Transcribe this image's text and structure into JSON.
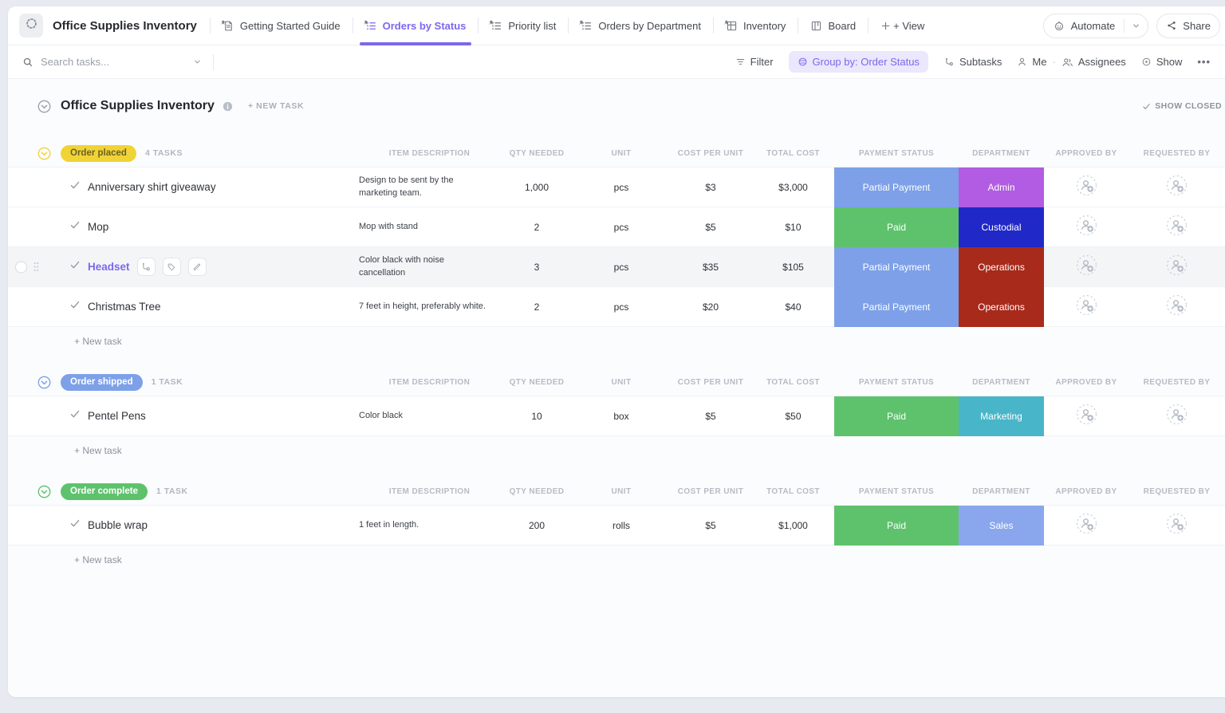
{
  "topbar": {
    "workspace_title": "Office Supplies Inventory",
    "tabs": [
      {
        "label": "Getting Started Guide",
        "icon": "doc-icon",
        "pinned": true,
        "active": false
      },
      {
        "label": "Orders by Status",
        "icon": "list-icon",
        "pinned": true,
        "active": true
      },
      {
        "label": "Priority list",
        "icon": "list-icon",
        "pinned": true,
        "active": false
      },
      {
        "label": "Orders by Department",
        "icon": "list-icon",
        "pinned": true,
        "active": false
      },
      {
        "label": "Inventory",
        "icon": "grid-icon",
        "pinned": true,
        "active": false
      },
      {
        "label": "Board",
        "icon": "board-icon",
        "pinned": false,
        "active": false
      }
    ],
    "add_view": "+ View",
    "automate": "Automate",
    "share": "Share"
  },
  "toolbar": {
    "search_placeholder": "Search tasks...",
    "filter": "Filter",
    "group_by": "Group by: Order Status",
    "subtasks": "Subtasks",
    "me": "Me",
    "assignees": "Assignees",
    "show": "Show",
    "more": "•••"
  },
  "page": {
    "title": "Office Supplies Inventory",
    "new_task": "+ NEW TASK",
    "show_closed": "SHOW CLOSED"
  },
  "columns": [
    "ITEM DESCRIPTION",
    "QTY NEEDED",
    "UNIT",
    "COST PER UNIT",
    "TOTAL COST",
    "PAYMENT STATUS",
    "DEPARTMENT",
    "APPROVED BY",
    "REQUESTED BY"
  ],
  "accent_color": "#7b68ee",
  "groups": [
    {
      "name": "Order placed",
      "count": "4 TASKS",
      "color": "#f0d335",
      "pill_text_color": "#6a6125",
      "new_task": "+ New task",
      "tasks": [
        {
          "name": "Anniversary shirt giveaway",
          "description": "Design to be sent by the marketing team.",
          "qty": "1,000",
          "unit": "pcs",
          "cost_per_unit": "$3",
          "total_cost": "$3,000",
          "payment_status": "Partial Payment",
          "payment_color": "#7da0e8",
          "department": "Admin",
          "department_color": "#b15ce2"
        },
        {
          "name": "Mop",
          "description": "Mop with stand",
          "qty": "2",
          "unit": "pcs",
          "cost_per_unit": "$5",
          "total_cost": "$10",
          "payment_status": "Paid",
          "payment_color": "#5ec26d",
          "department": "Custodial",
          "department_color": "#2029c7"
        },
        {
          "name": "Headset",
          "description": "Color black with noise cancellation",
          "qty": "3",
          "unit": "pcs",
          "cost_per_unit": "$35",
          "total_cost": "$105",
          "payment_status": "Partial Payment",
          "payment_color": "#7da0e8",
          "department": "Operations",
          "department_color": "#a82a1b",
          "highlighted": true,
          "name_color": "#7b68ee",
          "hover_actions": [
            "subtask-icon",
            "tag-icon",
            "pencil-icon"
          ]
        },
        {
          "name": "Christmas Tree",
          "description": "7 feet in height, preferably white.",
          "qty": "2",
          "unit": "pcs",
          "cost_per_unit": "$20",
          "total_cost": "$40",
          "payment_status": "Partial Payment",
          "payment_color": "#7da0e8",
          "department": "Operations",
          "department_color": "#a82a1b"
        }
      ]
    },
    {
      "name": "Order shipped",
      "count": "1 TASK",
      "color": "#7da0e8",
      "pill_text_color": "#ffffff",
      "new_task": "+ New task",
      "tasks": [
        {
          "name": "Pentel Pens",
          "description": "Color black",
          "qty": "10",
          "unit": "box",
          "cost_per_unit": "$5",
          "total_cost": "$50",
          "payment_status": "Paid",
          "payment_color": "#5ec26d",
          "department": "Marketing",
          "department_color": "#49b5c8"
        }
      ]
    },
    {
      "name": "Order complete",
      "count": "1 TASK",
      "color": "#5ec26d",
      "pill_text_color": "#ffffff",
      "new_task": "+ New task",
      "tasks": [
        {
          "name": "Bubble wrap",
          "description": "1 feet in length.",
          "qty": "200",
          "unit": "rolls",
          "cost_per_unit": "$5",
          "total_cost": "$1,000",
          "payment_status": "Paid",
          "payment_color": "#5ec26d",
          "department": "Sales",
          "department_color": "#8aa7ee"
        }
      ]
    }
  ]
}
